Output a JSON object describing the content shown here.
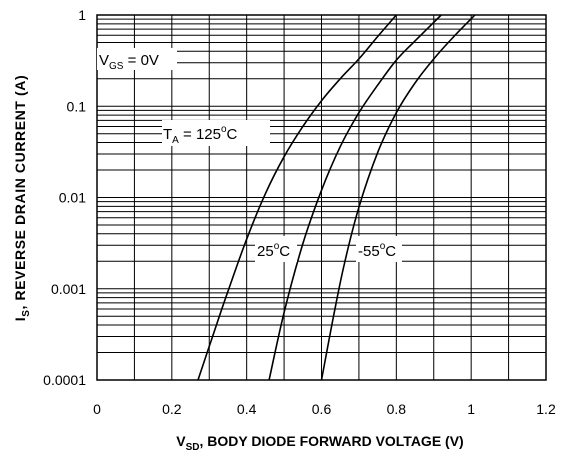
{
  "chart_data": {
    "type": "line",
    "x_scale": "linear",
    "y_scale": "log",
    "xlim": [
      0,
      1.2
    ],
    "ylim": [
      0.0001,
      1
    ],
    "grid": true,
    "x_ticks": [
      "0",
      "0.2",
      "0.4",
      "0.6",
      "0.8",
      "1",
      "1.2"
    ],
    "y_ticks": [
      "0.0001",
      "0.001",
      "0.01",
      "0.1",
      "1"
    ],
    "xlabel": {
      "main": "V",
      "sub": "SD",
      "rest": ", BODY DIODE FORWARD VOLTAGE (V)"
    },
    "ylabel": {
      "main": "I",
      "sub": "S",
      "rest": ", REVERSE DRAIN CURRENT (A)"
    },
    "annotations": {
      "vgs": {
        "main": "V",
        "sub": "GS",
        "rest": " = 0V"
      },
      "t125": {
        "main": "T",
        "sub": "A",
        "mid": " = 125",
        "sup": "o",
        "rest": "C"
      },
      "t25": {
        "main": "25",
        "sup": "o",
        "rest": "C"
      },
      "tm55": {
        "main": "-55",
        "sup": "o",
        "rest": "C"
      }
    },
    "series": [
      {
        "label_key": "t125",
        "x": [
          0.27,
          0.31,
          0.35,
          0.4,
          0.45,
          0.5,
          0.55,
          0.6,
          0.65,
          0.7,
          0.75,
          0.8
        ],
        "y": [
          0.0001,
          0.00031,
          0.00094,
          0.0035,
          0.011,
          0.028,
          0.06,
          0.115,
          0.2,
          0.33,
          0.58,
          1
        ]
      },
      {
        "label_key": "t25",
        "x": [
          0.46,
          0.5,
          0.55,
          0.6,
          0.65,
          0.7,
          0.75,
          0.8,
          0.85,
          0.92
        ],
        "y": [
          0.0001,
          0.00055,
          0.0031,
          0.012,
          0.036,
          0.085,
          0.17,
          0.32,
          0.52,
          1
        ]
      },
      {
        "label_key": "tm55",
        "x": [
          0.6,
          0.63,
          0.66,
          0.7,
          0.75,
          0.8,
          0.85,
          0.9,
          0.95,
          1.01
        ],
        "y": [
          0.0001,
          0.00045,
          0.0018,
          0.0078,
          0.031,
          0.085,
          0.18,
          0.33,
          0.56,
          1
        ]
      }
    ]
  }
}
